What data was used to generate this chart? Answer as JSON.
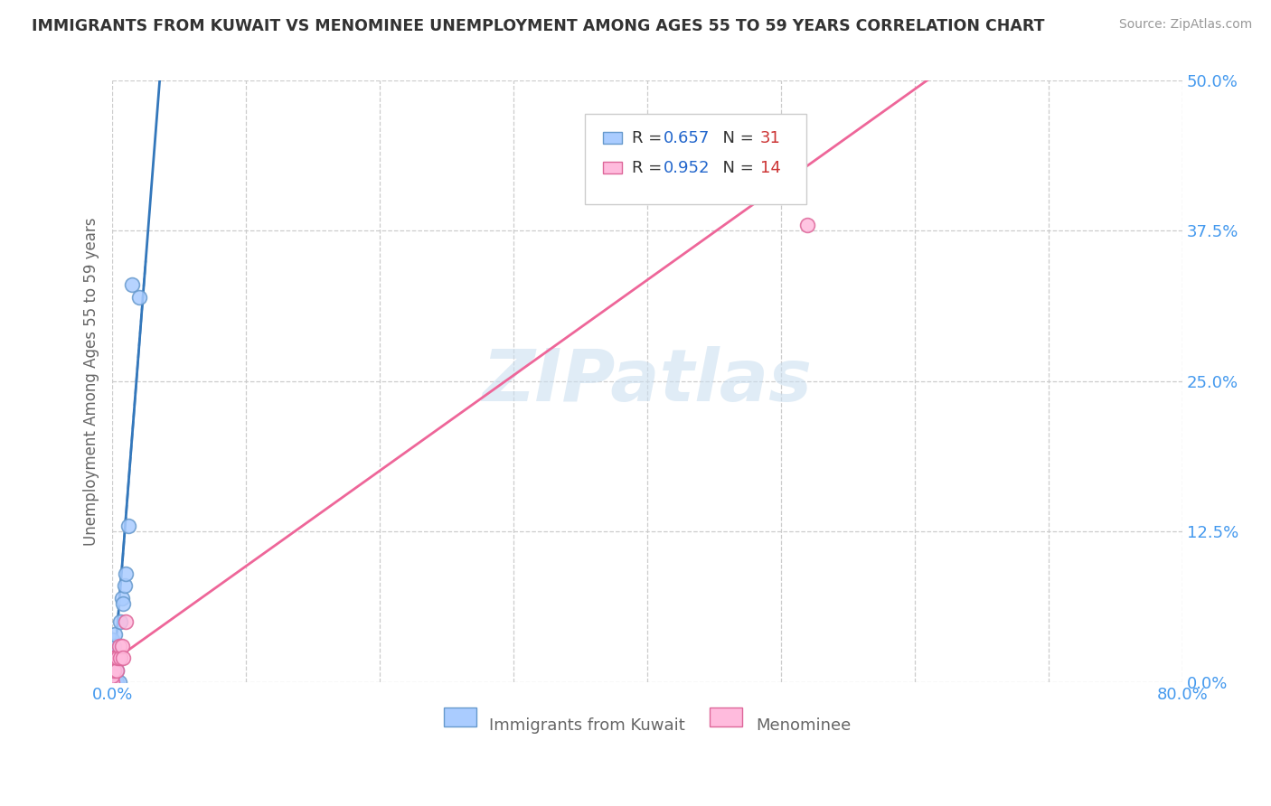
{
  "title": "IMMIGRANTS FROM KUWAIT VS MENOMINEE UNEMPLOYMENT AMONG AGES 55 TO 59 YEARS CORRELATION CHART",
  "source": "Source: ZipAtlas.com",
  "ylabel": "Unemployment Among Ages 55 to 59 years",
  "xlim": [
    0.0,
    0.8
  ],
  "ylim": [
    0.0,
    0.5
  ],
  "yticks": [
    0.0,
    0.125,
    0.25,
    0.375,
    0.5
  ],
  "ytick_labels": [
    "0.0%",
    "12.5%",
    "25.0%",
    "37.5%",
    "50.0%"
  ],
  "xtick_positions": [
    0.0,
    0.1,
    0.2,
    0.3,
    0.4,
    0.5,
    0.6,
    0.7,
    0.8
  ],
  "xtick_labels": [
    "0.0%",
    "",
    "",
    "",
    "",
    "",
    "",
    "",
    "80.0%"
  ],
  "background_color": "#ffffff",
  "grid_color": "#cccccc",
  "watermark": "ZIPatlas",
  "title_color": "#333333",
  "axis_label_color": "#666666",
  "tick_color": "#4499ee",
  "legend_R_color": "#2266cc",
  "legend_N_color": "#cc3333",
  "blue_series": {
    "label": "Immigrants from Kuwait",
    "R": 0.657,
    "N": 31,
    "face_color": "#aaccff",
    "edge_color": "#6699cc",
    "line_color": "#3377bb",
    "x": [
      0.0,
      0.0,
      0.0,
      0.0,
      0.0,
      0.0,
      0.0,
      0.0,
      0.001,
      0.001,
      0.001,
      0.001,
      0.001,
      0.001,
      0.002,
      0.002,
      0.002,
      0.002,
      0.003,
      0.003,
      0.004,
      0.005,
      0.005,
      0.006,
      0.007,
      0.008,
      0.009,
      0.01,
      0.012,
      0.015,
      0.02
    ],
    "y": [
      0.0,
      0.005,
      0.01,
      0.015,
      0.02,
      0.025,
      0.03,
      0.035,
      0.0,
      0.005,
      0.01,
      0.015,
      0.02,
      0.03,
      0.0,
      0.01,
      0.02,
      0.04,
      0.0,
      0.01,
      0.02,
      0.0,
      0.02,
      0.05,
      0.07,
      0.065,
      0.08,
      0.09,
      0.13,
      0.33,
      0.32
    ]
  },
  "pink_series": {
    "label": "Menominee",
    "R": 0.952,
    "N": 14,
    "face_color": "#ffbbdd",
    "edge_color": "#dd6699",
    "line_color": "#ee6699",
    "x": [
      0.0,
      0.0,
      0.0,
      0.001,
      0.002,
      0.003,
      0.004,
      0.005,
      0.006,
      0.007,
      0.008,
      0.01,
      0.45,
      0.52
    ],
    "y": [
      0.0,
      0.005,
      0.02,
      0.01,
      0.02,
      0.01,
      0.02,
      0.03,
      0.02,
      0.03,
      0.02,
      0.05,
      0.43,
      0.38
    ]
  }
}
